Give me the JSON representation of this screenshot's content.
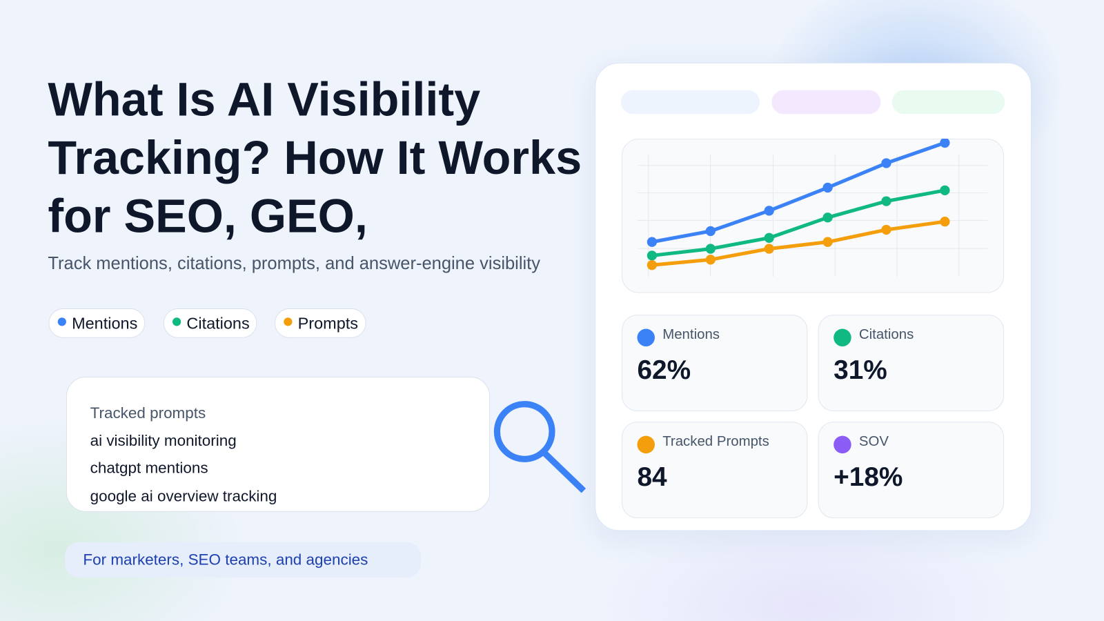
{
  "title": "What Is AI Visibility Tracking? How It Works for SEO, GEO,",
  "subtitle": "Track mentions, citations, prompts, and answer-engine visibility",
  "chart_data": {
    "type": "line",
    "series": [
      {
        "name": "Mentions",
        "color": "#3b82f6",
        "values": [
          24,
          32,
          47,
          64,
          82,
          97
        ]
      },
      {
        "name": "Citations",
        "color": "#10b981",
        "values": [
          14,
          19,
          27,
          42,
          54,
          62
        ]
      },
      {
        "name": "Prompts",
        "color": "#f59e0b",
        "values": [
          7,
          11,
          19,
          24,
          33,
          39
        ]
      }
    ],
    "ylim": [
      0,
      100
    ],
    "grid": true
  },
  "prompts_card": {
    "title": "Tracked prompts",
    "items": [
      "ai visibility monitoring",
      "chatgpt mentions",
      "google ai overview tracking"
    ]
  },
  "audience": "For marketers, SEO teams, and agencies",
  "metrics": [
    {
      "label": "Mentions",
      "value": "62%",
      "color": "#3b82f6"
    },
    {
      "label": "Citations",
      "value": "31%",
      "color": "#10b981"
    },
    {
      "label": "Tracked Prompts",
      "value": "84",
      "color": "#f59e0b"
    },
    {
      "label": "SOV",
      "value": "+18%",
      "color": "#8b5cf6"
    }
  ]
}
